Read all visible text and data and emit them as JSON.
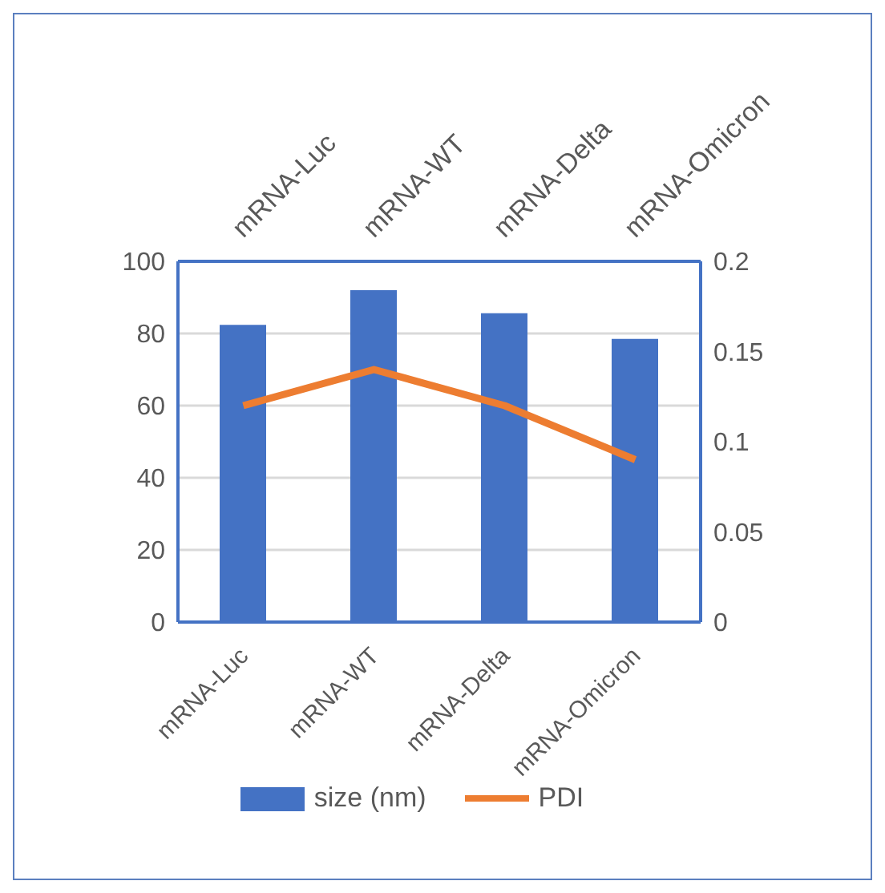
{
  "chart_data": {
    "type": "bar",
    "categories": [
      "mRNA-Luc",
      "mRNA-WT",
      "mRNA-Delta",
      "mRNA-Omicron"
    ],
    "series": [
      {
        "name": "size (nm)",
        "color": "#4472c4",
        "values": [
          82.4,
          92,
          85.6,
          78.5
        ]
      },
      {
        "name": "PDI",
        "type": "line",
        "axis": "y2",
        "color": "#ed7d31",
        "values": [
          0.12,
          0.14,
          0.12,
          0.09
        ]
      }
    ],
    "ylim": [
      0,
      100
    ],
    "yticks": [
      0,
      20,
      40,
      60,
      80,
      100
    ],
    "y2lim": [
      0,
      0.2
    ],
    "y2ticks": [
      0,
      0.05,
      0.1,
      0.15,
      0.2
    ],
    "grid": "y",
    "legend": "bottom"
  }
}
